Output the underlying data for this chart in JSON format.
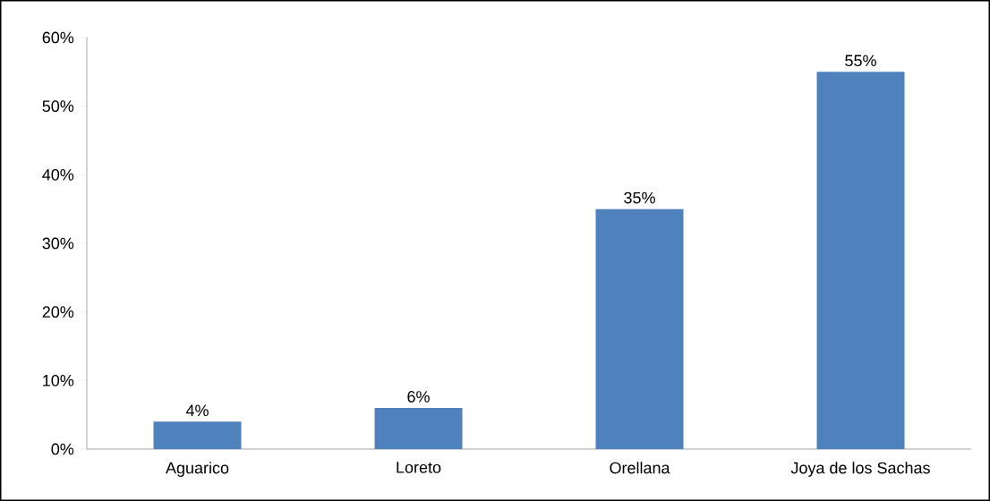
{
  "chart_data": {
    "type": "bar",
    "categories": [
      "Aguarico",
      "Loreto",
      "Orellana",
      "Joya de los Sachas"
    ],
    "values": [
      4,
      6,
      35,
      55
    ],
    "value_labels": [
      "4%",
      "6%",
      "35%",
      "55%"
    ],
    "color": "#4f81bd",
    "ylim": [
      0,
      60
    ],
    "yticks": [
      {
        "value": 0,
        "label": "0%"
      },
      {
        "value": 10,
        "label": "10%"
      },
      {
        "value": 20,
        "label": "20%"
      },
      {
        "value": 30,
        "label": "30%"
      },
      {
        "value": 40,
        "label": "40%"
      },
      {
        "value": 50,
        "label": "50%"
      },
      {
        "value": 60,
        "label": "60%"
      }
    ],
    "grid": false
  }
}
